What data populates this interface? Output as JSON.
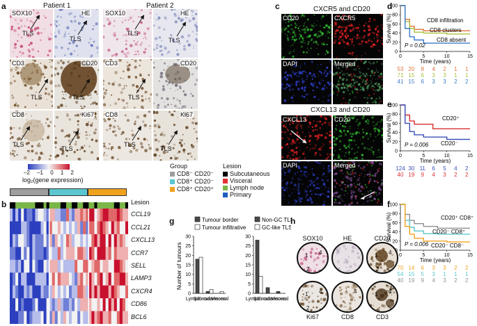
{
  "panels": {
    "a": {
      "label": "a",
      "patient1": "Patient 1",
      "patient2": "Patient 2",
      "stains_row1": [
        "SOX10",
        "HE"
      ],
      "stains_row2": [
        "CD3",
        "CD20"
      ],
      "stains_row3": [
        "CD8",
        "Ki67"
      ],
      "tls": "TLS"
    },
    "b": {
      "label": "b",
      "colorbar_ticks": [
        "–2",
        "–1",
        "0",
        "1",
        "2"
      ],
      "colorbar_title": "log₂(gene expression)",
      "lesion_track_label": "Lesion",
      "genes": [
        "CCL19",
        "CCL21",
        "CXCL13",
        "CCR7",
        "SELL",
        "LAMP3",
        "CXCR4",
        "CD86",
        "BCL6"
      ],
      "group_title": "Group",
      "groups": [
        {
          "name": "CD8⁻ CD20⁻",
          "color": "#9e9e9e"
        },
        {
          "name": "CD8⁺ CD20⁻",
          "color": "#5bc6d0"
        },
        {
          "name": "CD8⁺ CD20⁺",
          "color": "#f0a21e"
        }
      ],
      "lesion_title": "Lesion",
      "lesions": [
        {
          "name": "Subcutaneous",
          "color": "#000000"
        },
        {
          "name": "Visceral",
          "color": "#e03030"
        },
        {
          "name": "Lymph node",
          "color": "#7ab648"
        },
        {
          "name": "Primary",
          "color": "#1f5fbf"
        }
      ]
    },
    "c": {
      "label": "c",
      "title1": "CXCR5 and CD20",
      "title2": "CXCL13 and CD20",
      "top_tiles": [
        "CD20",
        "CXCR5",
        "DAPI",
        "Merged"
      ],
      "bottom_tiles": [
        "CXCL13",
        "CD20",
        "DAPI",
        "Merged"
      ]
    },
    "d": {
      "label": "d",
      "ylabel": "Survival (%)",
      "xlabel": "Time (years)",
      "pvalue": "P = 0.02",
      "curves": [
        "CD8 infiltration",
        "CD8 clusters",
        "CD8 absent"
      ],
      "risk": [
        [
          "53",
          "20",
          "8",
          "4",
          "2",
          "1",
          "1"
        ],
        [
          "71",
          "15",
          "6",
          "3",
          "3",
          "1",
          "1"
        ],
        [
          "41",
          "15",
          "6",
          "3",
          "3",
          "2",
          "2"
        ]
      ],
      "risk_colors": [
        "#e0743a",
        "#a8c03c",
        "#3a7bc8"
      ]
    },
    "e": {
      "label": "e",
      "ylabel": "Survival (%)",
      "xlabel": "Time (years)",
      "pvalue": "P = 0.006",
      "curves": [
        "CD20⁺",
        "CD20⁻"
      ],
      "risk": [
        [
          "124",
          "30",
          "11",
          "6",
          "5",
          "4",
          "2"
        ],
        [
          "40",
          "19",
          "9",
          "4",
          "3",
          "2",
          "2"
        ]
      ],
      "risk_colors": [
        "#3a50b8",
        "#d83030"
      ]
    },
    "f": {
      "label": "f",
      "ylabel": "Survival (%)",
      "xlabel": "Time (years)",
      "pvalue": "P = 0.006",
      "curves": [
        "CD20⁺ CD8⁺",
        "CD20⁻ CD8⁺",
        "CD20⁻ CD8⁻"
      ],
      "risk": [
        [
          "70",
          "14",
          "6",
          "3",
          "3",
          "2",
          "2"
        ],
        [
          "54",
          "15",
          "5",
          "3",
          "1",
          "1",
          "1"
        ],
        [
          "40",
          "19",
          "9",
          "4",
          "3",
          "2",
          "2"
        ]
      ],
      "risk_colors": [
        "#f0a21e",
        "#5bc6d0",
        "#909090"
      ]
    },
    "g": {
      "label": "g",
      "ylabel": "Number of tumours",
      "legend1": [
        "Tumour border",
        "Tumour infiltrative"
      ],
      "legend2": [
        "Non-GC TLSs",
        "GC-like TLSs"
      ],
      "categories": [
        "Lymph node",
        "Sub cutaneous",
        "Visceral"
      ]
    },
    "h": {
      "label": "h",
      "stains": [
        "SOX10",
        "HE",
        "CD20",
        "Ki67",
        "CD8",
        "CD3"
      ]
    }
  },
  "chart_data": [
    {
      "type": "line",
      "panel": "d",
      "xlabel": "Time (years)",
      "ylabel": "Survival (%)",
      "xlim": [
        0,
        15
      ],
      "ylim": [
        0,
        100
      ],
      "xticks": [
        0,
        5,
        10,
        15
      ],
      "yticks": [
        0,
        20,
        40,
        60,
        80,
        100
      ],
      "series": [
        {
          "name": "CD8 infiltration",
          "color": "#e0743a",
          "x": [
            0,
            1,
            2,
            3,
            5,
            8,
            15
          ],
          "y": [
            100,
            70,
            55,
            48,
            45,
            45,
            45
          ]
        },
        {
          "name": "CD8 clusters",
          "color": "#a8c03c",
          "x": [
            0,
            1,
            2,
            3,
            5,
            10,
            15
          ],
          "y": [
            100,
            65,
            50,
            42,
            40,
            38,
            38
          ]
        },
        {
          "name": "CD8 absent",
          "color": "#3a7bc8",
          "x": [
            0,
            1,
            2,
            3,
            5,
            15
          ],
          "y": [
            100,
            50,
            32,
            25,
            18,
            18
          ]
        }
      ]
    },
    {
      "type": "line",
      "panel": "e",
      "xlabel": "Time (years)",
      "ylabel": "Survival (%)",
      "xlim": [
        0,
        15
      ],
      "ylim": [
        0,
        100
      ],
      "xticks": [
        0,
        5,
        10,
        15
      ],
      "yticks": [
        0,
        20,
        40,
        60,
        80,
        100
      ],
      "series": [
        {
          "name": "CD20⁺",
          "color": "#d83030",
          "x": [
            0,
            1,
            2,
            3,
            5,
            7,
            15
          ],
          "y": [
            100,
            78,
            65,
            58,
            58,
            48,
            48
          ]
        },
        {
          "name": "CD20⁻",
          "color": "#3a50b8",
          "x": [
            0,
            1,
            2,
            3,
            5,
            10,
            15
          ],
          "y": [
            100,
            60,
            42,
            35,
            30,
            25,
            25
          ]
        }
      ]
    },
    {
      "type": "line",
      "panel": "f",
      "xlabel": "Time (years)",
      "ylabel": "Survival (%)",
      "xlim": [
        0,
        15
      ],
      "ylim": [
        0,
        100
      ],
      "xticks": [
        0,
        5,
        10,
        15
      ],
      "yticks": [
        0,
        20,
        40,
        60,
        80,
        100
      ],
      "series": [
        {
          "name": "CD20⁺ CD8⁺",
          "color": "#909090",
          "x": [
            0,
            1,
            2,
            3,
            5,
            8,
            15
          ],
          "y": [
            100,
            78,
            65,
            58,
            52,
            48,
            48
          ]
        },
        {
          "name": "CD20⁻ CD8⁺",
          "color": "#5bc6d0",
          "x": [
            0,
            1,
            2,
            3,
            5,
            8,
            15
          ],
          "y": [
            100,
            65,
            50,
            42,
            36,
            35,
            35
          ]
        },
        {
          "name": "CD20⁻ CD8⁻",
          "color": "#f0a21e",
          "x": [
            0,
            1,
            2,
            3,
            5,
            10,
            15
          ],
          "y": [
            100,
            52,
            35,
            26,
            20,
            18,
            18
          ]
        }
      ]
    },
    {
      "type": "bar",
      "panel": "g-left",
      "categories": [
        "Lymph node",
        "Sub cutaneous",
        "Visceral"
      ],
      "ylim": [
        0,
        30
      ],
      "yticks": [
        0,
        5,
        10,
        15,
        20,
        25,
        30
      ],
      "series": [
        {
          "name": "Tumour border",
          "color": "#4a4a4a",
          "values": [
            18,
            1,
            0
          ]
        },
        {
          "name": "Tumour infiltrative",
          "color": "#ffffff",
          "values": [
            19,
            2,
            1
          ]
        }
      ]
    },
    {
      "type": "bar",
      "panel": "g-right",
      "categories": [
        "Lymph node",
        "Sub cutaneous",
        "Visceral"
      ],
      "ylim": [
        0,
        30
      ],
      "yticks": [
        0,
        5,
        10,
        15,
        20,
        25,
        30
      ],
      "series": [
        {
          "name": "Non-GC TLSs",
          "color": "#4a4a4a",
          "values": [
            28,
            3,
            1
          ]
        },
        {
          "name": "GC-like TLSs",
          "color": "#ffffff",
          "values": [
            9,
            0,
            0
          ]
        }
      ]
    }
  ]
}
